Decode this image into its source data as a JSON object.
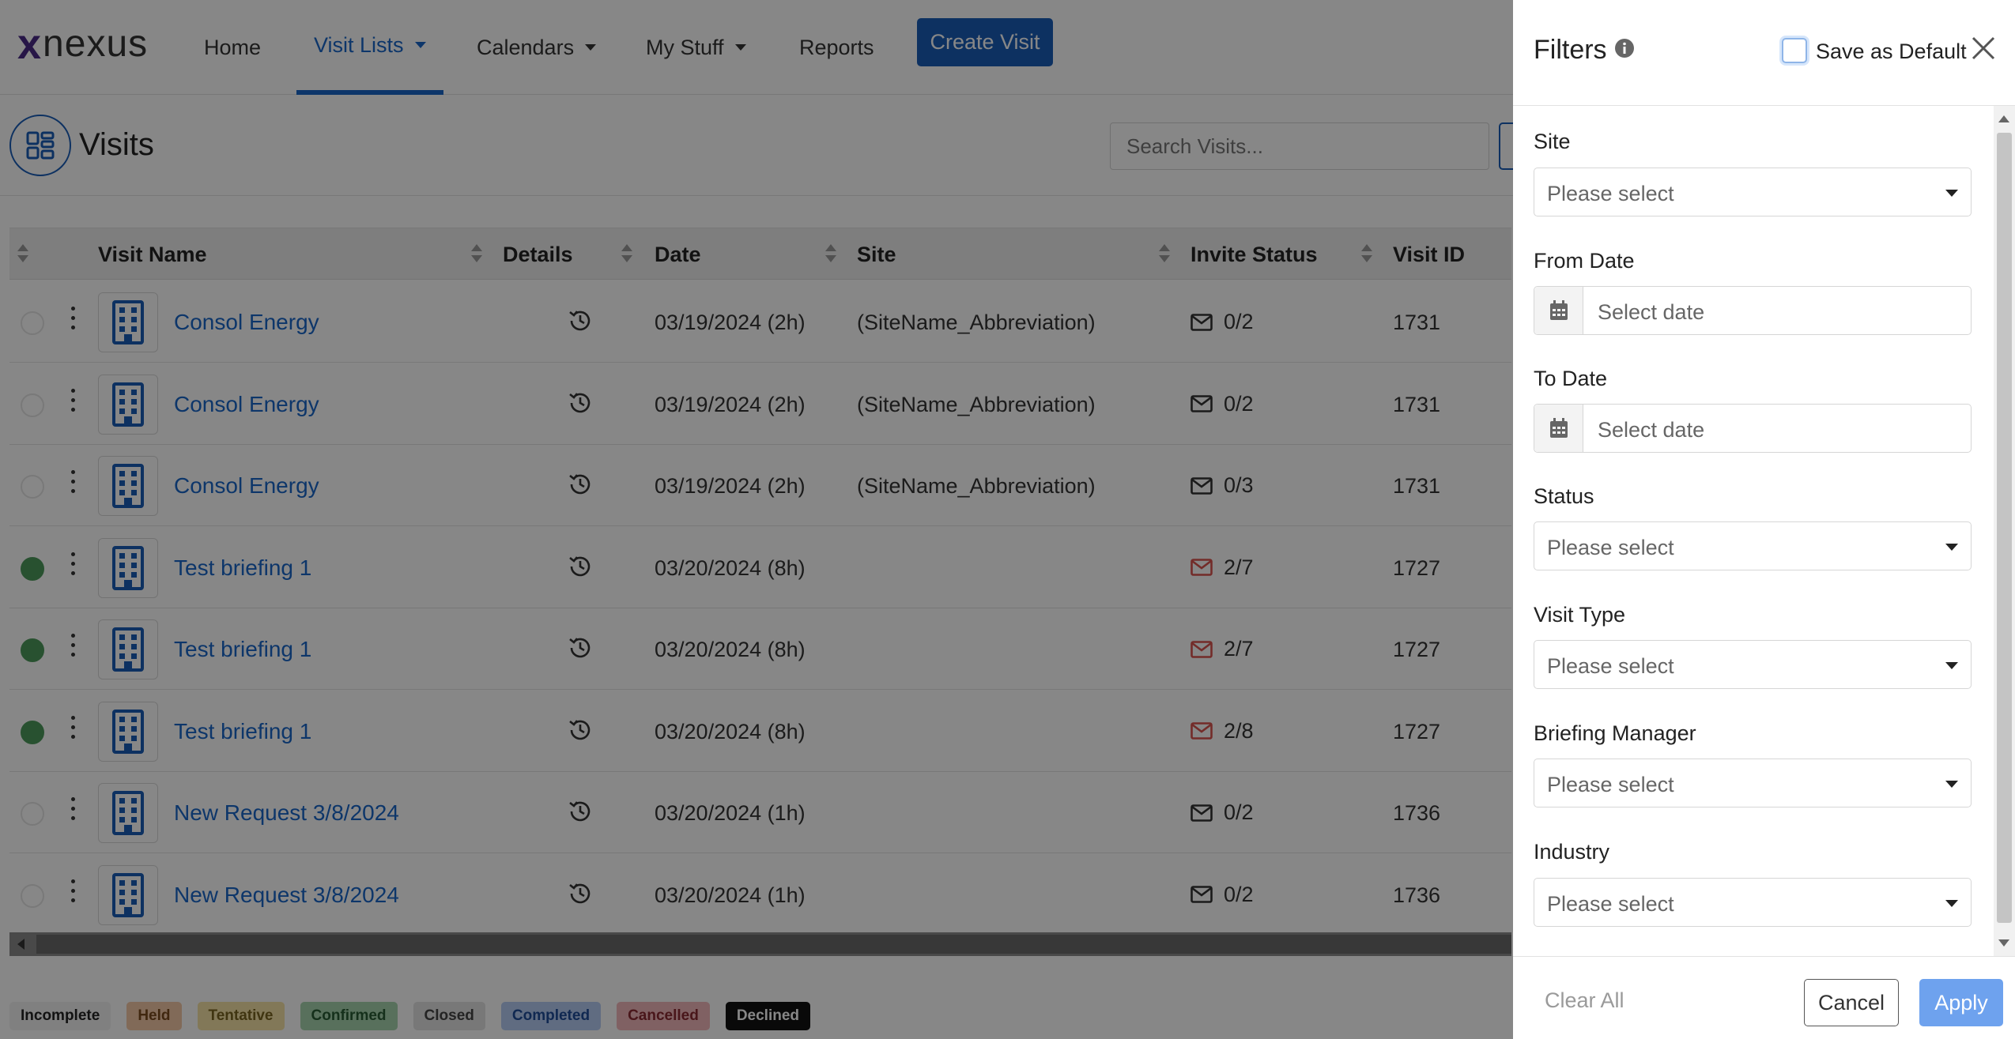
{
  "app": {
    "logo_mark": "x",
    "logo_word": "nexus"
  },
  "nav": {
    "home": "Home",
    "visit_lists": "Visit Lists",
    "calendars": "Calendars",
    "my_stuff": "My Stuff",
    "reports": "Reports",
    "create_visit": "Create Visit"
  },
  "page": {
    "title": "Visits",
    "search_placeholder": "Search Visits..."
  },
  "table": {
    "columns": {
      "visit_name": "Visit Name",
      "details": "Details",
      "date": "Date",
      "site": "Site",
      "invite_status": "Invite Status",
      "visit_id": "Visit ID"
    },
    "rows": [
      {
        "status": "incomplete",
        "name": "Consol Energy",
        "date": "03/19/2024 (2h)",
        "site": "(SiteName_Abbreviation)",
        "invite": "0/2",
        "invite_alert": false,
        "visit_id": "1731"
      },
      {
        "status": "incomplete",
        "name": "Consol Energy",
        "date": "03/19/2024 (2h)",
        "site": "(SiteName_Abbreviation)",
        "invite": "0/2",
        "invite_alert": false,
        "visit_id": "1731"
      },
      {
        "status": "incomplete",
        "name": "Consol Energy",
        "date": "03/19/2024 (2h)",
        "site": "(SiteName_Abbreviation)",
        "invite": "0/3",
        "invite_alert": false,
        "visit_id": "1731"
      },
      {
        "status": "confirmed",
        "name": "Test briefing 1",
        "date": "03/20/2024 (8h)",
        "site": "",
        "invite": "2/7",
        "invite_alert": true,
        "visit_id": "1727"
      },
      {
        "status": "confirmed",
        "name": "Test briefing 1",
        "date": "03/20/2024 (8h)",
        "site": "",
        "invite": "2/7",
        "invite_alert": true,
        "visit_id": "1727"
      },
      {
        "status": "confirmed",
        "name": "Test briefing 1",
        "date": "03/20/2024 (8h)",
        "site": "",
        "invite": "2/8",
        "invite_alert": true,
        "visit_id": "1727"
      },
      {
        "status": "incomplete",
        "name": "New Request 3/8/2024",
        "date": "03/20/2024 (1h)",
        "site": "",
        "invite": "0/2",
        "invite_alert": false,
        "visit_id": "1736"
      },
      {
        "status": "incomplete",
        "name": "New Request 3/8/2024",
        "date": "03/20/2024 (1h)",
        "site": "",
        "invite": "0/2",
        "invite_alert": false,
        "visit_id": "1736"
      }
    ]
  },
  "legend": [
    {
      "label": "Incomplete",
      "bg": "#f2f2f2",
      "fg": "#222222"
    },
    {
      "label": "Held",
      "bg": "#f3c9a6",
      "fg": "#7a4a1e"
    },
    {
      "label": "Tentative",
      "bg": "#f5e3a6",
      "fg": "#7a6420"
    },
    {
      "label": "Confirmed",
      "bg": "#a7d4ae",
      "fg": "#285c33"
    },
    {
      "label": "Closed",
      "bg": "#e3e3e3",
      "fg": "#444444"
    },
    {
      "label": "Completed",
      "bg": "#b5cdf3",
      "fg": "#1f4d9a"
    },
    {
      "label": "Cancelled",
      "bg": "#f2b8bc",
      "fg": "#8a2a32"
    },
    {
      "label": "Declined",
      "bg": "#111111",
      "fg": "#ffffff"
    }
  ],
  "filters": {
    "title": "Filters",
    "save_default_label": "Save as Default",
    "save_default_checked": false,
    "fields": {
      "site": {
        "label": "Site",
        "placeholder": "Please select"
      },
      "from_date": {
        "label": "From Date",
        "placeholder": "Select date"
      },
      "to_date": {
        "label": "To Date",
        "placeholder": "Select date"
      },
      "status": {
        "label": "Status",
        "placeholder": "Please select"
      },
      "visit_type": {
        "label": "Visit Type",
        "placeholder": "Please select"
      },
      "briefing_manager": {
        "label": "Briefing Manager",
        "placeholder": "Please select"
      },
      "industry": {
        "label": "Industry",
        "placeholder": "Please select"
      }
    },
    "clear_all": "Clear All",
    "cancel": "Cancel",
    "apply": "Apply"
  },
  "colors": {
    "brand_blue": "#1a5db8",
    "link_blue": "#1a66c9",
    "confirmed_green": "#4d9a5c",
    "invite_alert_red": "#d9534f",
    "apply_blue": "#6ea2ee"
  }
}
